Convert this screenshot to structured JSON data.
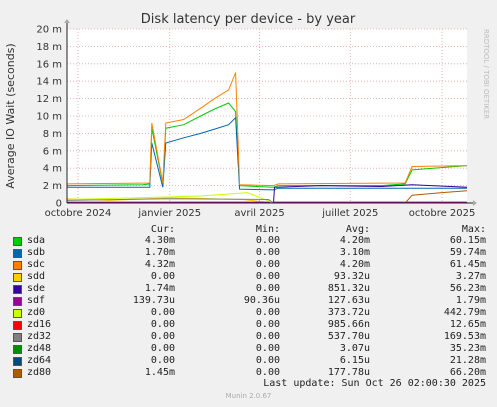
{
  "chart_data": {
    "type": "line",
    "title": "Disk latency per device - by year",
    "ylabel": "Average IO Wait (seconds)",
    "watermark": "RRDTOOL / TOBI OETIKER",
    "ylim": [
      0,
      20
    ],
    "yticks": [
      "0",
      "2 m",
      "4 m",
      "6 m",
      "8 m",
      "10 m",
      "12 m",
      "14 m",
      "16 m",
      "18 m",
      "20 m"
    ],
    "x_start": "2024-09-20",
    "x_end": "2025-10-26",
    "xticks": [
      {
        "label": "octobre 2024",
        "date": "2024-10-01"
      },
      {
        "label": "janvier 2025",
        "date": "2025-01-01"
      },
      {
        "label": "avril 2025",
        "date": "2025-04-01"
      },
      {
        "label": "juillet 2025",
        "date": "2025-07-01"
      },
      {
        "label": "octobre 2025",
        "date": "2025-10-01"
      }
    ],
    "legend_headers": {
      "cur": "Cur:",
      "min": "Min:",
      "avg": "Avg:",
      "max": "Max:"
    },
    "series": [
      {
        "name": "sda",
        "color": "#00cc00",
        "cur": "4.30m",
        "min": "0.00",
        "avg": "4.20m",
        "max": "60.15m",
        "points": [
          [
            "2024-09-20",
            2.0
          ],
          [
            "2024-12-05",
            2.1
          ],
          [
            "2024-12-12",
            2.2
          ],
          [
            "2024-12-14",
            8.6
          ],
          [
            "2024-12-25",
            2.2
          ],
          [
            "2024-12-28",
            8.6
          ],
          [
            "2025-01-15",
            9.0
          ],
          [
            "2025-02-01",
            10.0
          ],
          [
            "2025-02-15",
            10.8
          ],
          [
            "2025-03-01",
            11.5
          ],
          [
            "2025-03-08",
            10.5
          ],
          [
            "2025-03-12",
            2.0
          ],
          [
            "2025-04-15",
            1.8
          ],
          [
            "2025-04-20",
            2.0
          ],
          [
            "2025-08-01",
            2.0
          ],
          [
            "2025-08-25",
            2.2
          ],
          [
            "2025-09-01",
            3.8
          ],
          [
            "2025-10-26",
            4.3
          ]
        ]
      },
      {
        "name": "sdb",
        "color": "#0066b3",
        "cur": "1.70m",
        "min": "0.00",
        "avg": "3.10m",
        "max": "59.74m",
        "points": [
          [
            "2024-09-20",
            1.8
          ],
          [
            "2024-12-12",
            1.8
          ],
          [
            "2024-12-14",
            6.9
          ],
          [
            "2024-12-25",
            1.8
          ],
          [
            "2024-12-28",
            6.9
          ],
          [
            "2025-01-15",
            7.5
          ],
          [
            "2025-02-01",
            8.0
          ],
          [
            "2025-02-15",
            8.5
          ],
          [
            "2025-03-01",
            9.0
          ],
          [
            "2025-03-08",
            9.8
          ],
          [
            "2025-03-12",
            1.6
          ],
          [
            "2025-04-15",
            1.5
          ],
          [
            "2025-04-20",
            1.7
          ],
          [
            "2025-09-01",
            1.7
          ],
          [
            "2025-10-26",
            1.7
          ]
        ]
      },
      {
        "name": "sdc",
        "color": "#ff8000",
        "cur": "4.32m",
        "min": "0.00",
        "avg": "4.20m",
        "max": "61.45m",
        "points": [
          [
            "2024-09-20",
            2.2
          ],
          [
            "2024-12-12",
            2.3
          ],
          [
            "2024-12-14",
            9.2
          ],
          [
            "2024-12-25",
            2.3
          ],
          [
            "2024-12-28",
            9.2
          ],
          [
            "2025-01-15",
            9.6
          ],
          [
            "2025-02-01",
            10.9
          ],
          [
            "2025-02-15",
            12.0
          ],
          [
            "2025-03-01",
            13.0
          ],
          [
            "2025-03-08",
            15.0
          ],
          [
            "2025-03-12",
            2.1
          ],
          [
            "2025-04-15",
            2.0
          ],
          [
            "2025-04-20",
            2.2
          ],
          [
            "2025-08-25",
            2.3
          ],
          [
            "2025-09-01",
            4.2
          ],
          [
            "2025-10-26",
            4.3
          ]
        ]
      },
      {
        "name": "sdd",
        "color": "#ffcc00",
        "cur": "0.00",
        "min": "0.00",
        "avg": "93.32u",
        "max": "3.27m",
        "points": [
          [
            "2024-09-20",
            0.5
          ],
          [
            "2024-11-01",
            0.3
          ],
          [
            "2025-01-01",
            0.6
          ],
          [
            "2025-03-15",
            0.4
          ],
          [
            "2025-04-15",
            0.0
          ],
          [
            "2025-10-26",
            0.0
          ]
        ]
      },
      {
        "name": "sde",
        "color": "#330099",
        "cur": "1.74m",
        "min": "0.00",
        "avg": "851.32u",
        "max": "56.23m",
        "points": [
          [
            "2024-09-20",
            0.0
          ],
          [
            "2025-04-15",
            0.0
          ],
          [
            "2025-04-16",
            1.8
          ],
          [
            "2025-06-01",
            2.0
          ],
          [
            "2025-08-01",
            1.9
          ],
          [
            "2025-09-01",
            2.1
          ],
          [
            "2025-10-26",
            1.8
          ]
        ]
      },
      {
        "name": "sdf",
        "color": "#990099",
        "cur": "139.73u",
        "min": "90.36u",
        "avg": "127.63u",
        "max": "1.79m",
        "points": [
          [
            "2024-09-20",
            0.1
          ],
          [
            "2025-10-26",
            0.1
          ]
        ]
      },
      {
        "name": "zd0",
        "color": "#ccff00",
        "cur": "0.00",
        "min": "0.00",
        "avg": "373.72u",
        "max": "442.79m",
        "points": [
          [
            "2024-09-20",
            0.4
          ],
          [
            "2024-12-01",
            0.6
          ],
          [
            "2025-02-01",
            0.8
          ],
          [
            "2025-03-20",
            1.2
          ],
          [
            "2025-04-15",
            0.0
          ],
          [
            "2025-10-26",
            0.0
          ]
        ]
      },
      {
        "name": "zd16",
        "color": "#ff0000",
        "cur": "0.00",
        "min": "0.00",
        "avg": "985.66n",
        "max": "12.65m",
        "points": [
          [
            "2024-09-20",
            0.0
          ],
          [
            "2025-10-26",
            0.0
          ]
        ]
      },
      {
        "name": "zd32",
        "color": "#808080",
        "cur": "0.00",
        "min": "0.00",
        "avg": "537.70u",
        "max": "169.53m",
        "points": [
          [
            "2024-09-20",
            0.3
          ],
          [
            "2025-01-01",
            0.5
          ],
          [
            "2025-04-10",
            0.4
          ],
          [
            "2025-04-15",
            0.0
          ],
          [
            "2025-10-26",
            0.0
          ]
        ]
      },
      {
        "name": "zd48",
        "color": "#008f00",
        "cur": "0.00",
        "min": "0.00",
        "avg": "3.07u",
        "max": "35.23m",
        "points": [
          [
            "2024-09-20",
            0.0
          ],
          [
            "2025-10-26",
            0.0
          ]
        ]
      },
      {
        "name": "zd64",
        "color": "#00487d",
        "cur": "0.00",
        "min": "0.00",
        "avg": "6.15u",
        "max": "21.28m",
        "points": [
          [
            "2024-09-20",
            0.0
          ],
          [
            "2025-10-26",
            0.0
          ]
        ]
      },
      {
        "name": "zd80",
        "color": "#b35a00",
        "cur": "1.45m",
        "min": "0.00",
        "avg": "177.78u",
        "max": "66.20m",
        "points": [
          [
            "2024-09-20",
            0.0
          ],
          [
            "2025-08-25",
            0.0
          ],
          [
            "2025-09-01",
            0.9
          ],
          [
            "2025-10-01",
            1.2
          ],
          [
            "2025-10-26",
            1.4
          ]
        ]
      }
    ],
    "grid": true,
    "last_update": "Last update: Sun Oct 26 02:00:30 2025",
    "footer": "Munin 2.0.67"
  }
}
